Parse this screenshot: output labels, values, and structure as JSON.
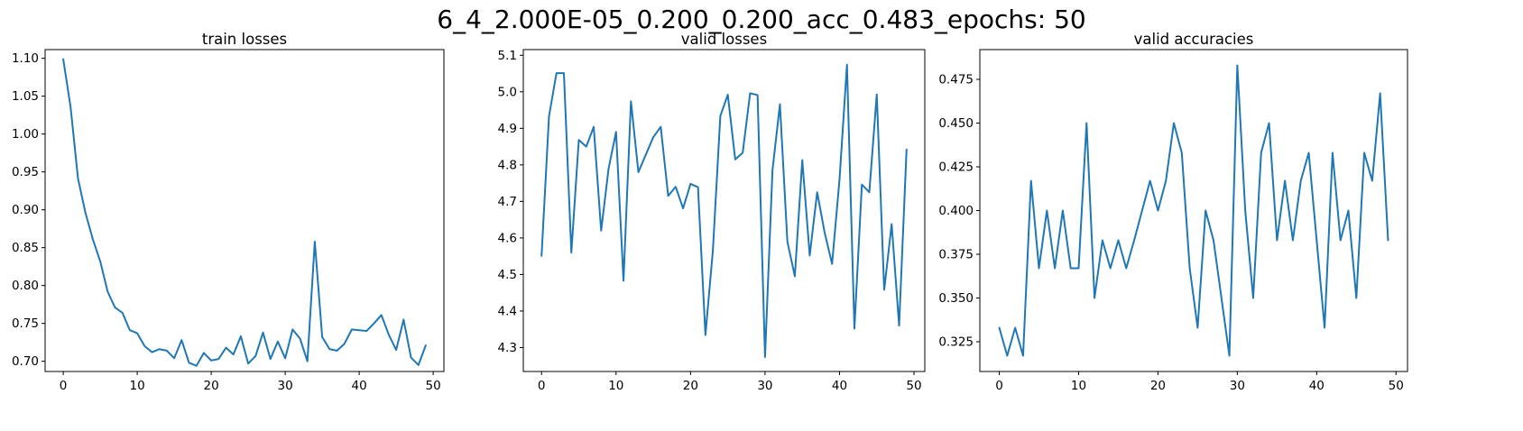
{
  "figure": {
    "suptitle": "6_4_2.000E-05_0.200_0.200_acc_0.483_epochs: 50",
    "line_color": "#1f77b4"
  },
  "chart_data": [
    {
      "type": "line",
      "title": "train losses",
      "xlabel": "",
      "ylabel": "",
      "xlim": [
        -2.45,
        51.45
      ],
      "ylim": [
        0.6865,
        1.1115
      ],
      "xticks": [
        0,
        10,
        20,
        30,
        40,
        50
      ],
      "xtick_labels": [
        "0",
        "10",
        "20",
        "30",
        "40",
        "50"
      ],
      "yticks": [
        0.7,
        0.75,
        0.8,
        0.85,
        0.9,
        0.95,
        1.0,
        1.05,
        1.1
      ],
      "ytick_labels": [
        "0.70",
        "0.75",
        "0.80",
        "0.85",
        "0.90",
        "0.95",
        "1.00",
        "1.05",
        "1.10"
      ],
      "grid": false,
      "series": [
        {
          "x": [
            0,
            1,
            2,
            3,
            4,
            5,
            6,
            7,
            8,
            9,
            10,
            11,
            12,
            13,
            14,
            15,
            16,
            17,
            18,
            19,
            20,
            21,
            22,
            23,
            24,
            25,
            26,
            27,
            28,
            29,
            30,
            31,
            32,
            33,
            34,
            35,
            36,
            37,
            38,
            39,
            40,
            41,
            42,
            43,
            44,
            45,
            46,
            47,
            48,
            49
          ],
          "values": [
            1.099,
            1.035,
            0.941,
            0.896,
            0.861,
            0.832,
            0.792,
            0.771,
            0.764,
            0.741,
            0.737,
            0.72,
            0.712,
            0.716,
            0.714,
            0.704,
            0.728,
            0.698,
            0.694,
            0.711,
            0.701,
            0.703,
            0.718,
            0.709,
            0.733,
            0.697,
            0.707,
            0.738,
            0.703,
            0.726,
            0.704,
            0.742,
            0.73,
            0.7,
            0.858,
            0.732,
            0.716,
            0.714,
            0.723,
            0.742,
            0.741,
            0.74,
            0.75,
            0.761,
            0.735,
            0.715,
            0.755,
            0.705,
            0.695,
            0.721
          ]
        }
      ]
    },
    {
      "type": "line",
      "title": "valid losses",
      "xlabel": "",
      "ylabel": "",
      "xlim": [
        -2.45,
        51.45
      ],
      "ylim": [
        4.2345,
        5.1155
      ],
      "xticks": [
        0,
        10,
        20,
        30,
        40,
        50
      ],
      "xtick_labels": [
        "0",
        "10",
        "20",
        "30",
        "40",
        "50"
      ],
      "yticks": [
        4.3,
        4.4,
        4.5,
        4.6,
        4.7,
        4.8,
        4.9,
        5.0,
        5.1
      ],
      "ytick_labels": [
        "4.3",
        "4.4",
        "4.5",
        "4.6",
        "4.7",
        "4.8",
        "4.9",
        "5.0",
        "5.1"
      ],
      "grid": false,
      "series": [
        {
          "x": [
            0,
            1,
            2,
            3,
            4,
            5,
            6,
            7,
            8,
            9,
            10,
            11,
            12,
            13,
            14,
            15,
            16,
            17,
            18,
            19,
            20,
            21,
            22,
            23,
            24,
            25,
            26,
            27,
            28,
            29,
            30,
            31,
            32,
            33,
            34,
            35,
            36,
            37,
            38,
            39,
            40,
            41,
            42,
            43,
            44,
            45,
            46,
            47,
            48,
            49
          ],
          "values": [
            4.551,
            4.933,
            5.051,
            5.051,
            4.56,
            4.868,
            4.85,
            4.904,
            4.62,
            4.79,
            4.89,
            4.483,
            4.974,
            4.78,
            4.828,
            4.876,
            4.904,
            4.715,
            4.74,
            4.681,
            4.748,
            4.739,
            4.334,
            4.566,
            4.934,
            4.992,
            4.815,
            4.833,
            4.996,
            4.991,
            4.274,
            4.785,
            4.966,
            4.59,
            4.495,
            4.813,
            4.552,
            4.725,
            4.615,
            4.529,
            4.76,
            5.074,
            4.352,
            4.746,
            4.725,
            4.993,
            4.458,
            4.638,
            4.36,
            4.842
          ]
        }
      ]
    },
    {
      "type": "line",
      "title": "valid accuracies",
      "xlabel": "",
      "ylabel": "",
      "xlim": [
        -2.45,
        51.45
      ],
      "ylim": [
        0.308,
        0.492
      ],
      "xticks": [
        0,
        10,
        20,
        30,
        40,
        50
      ],
      "xtick_labels": [
        "0",
        "10",
        "20",
        "30",
        "40",
        "50"
      ],
      "yticks": [
        0.325,
        0.35,
        0.375,
        0.4,
        0.425,
        0.45,
        0.475
      ],
      "ytick_labels": [
        "0.325",
        "0.350",
        "0.375",
        "0.400",
        "0.425",
        "0.450",
        "0.475"
      ],
      "grid": false,
      "series": [
        {
          "x": [
            0,
            1,
            2,
            3,
            4,
            5,
            6,
            7,
            8,
            9,
            10,
            11,
            12,
            13,
            14,
            15,
            16,
            17,
            18,
            19,
            20,
            21,
            22,
            23,
            24,
            25,
            26,
            27,
            28,
            29,
            30,
            31,
            32,
            33,
            34,
            35,
            36,
            37,
            38,
            39,
            40,
            41,
            42,
            43,
            44,
            45,
            46,
            47,
            48,
            49
          ],
          "values": [
            0.333,
            0.317,
            0.333,
            0.317,
            0.417,
            0.367,
            0.4,
            0.367,
            0.4,
            0.367,
            0.367,
            0.45,
            0.35,
            0.383,
            0.367,
            0.383,
            0.367,
            0.383,
            0.4,
            0.417,
            0.4,
            0.417,
            0.45,
            0.433,
            0.367,
            0.333,
            0.4,
            0.383,
            0.35,
            0.317,
            0.483,
            0.4,
            0.35,
            0.433,
            0.45,
            0.383,
            0.417,
            0.383,
            0.417,
            0.433,
            0.383,
            0.333,
            0.433,
            0.383,
            0.4,
            0.35,
            0.433,
            0.417,
            0.467,
            0.383
          ]
        }
      ]
    }
  ]
}
